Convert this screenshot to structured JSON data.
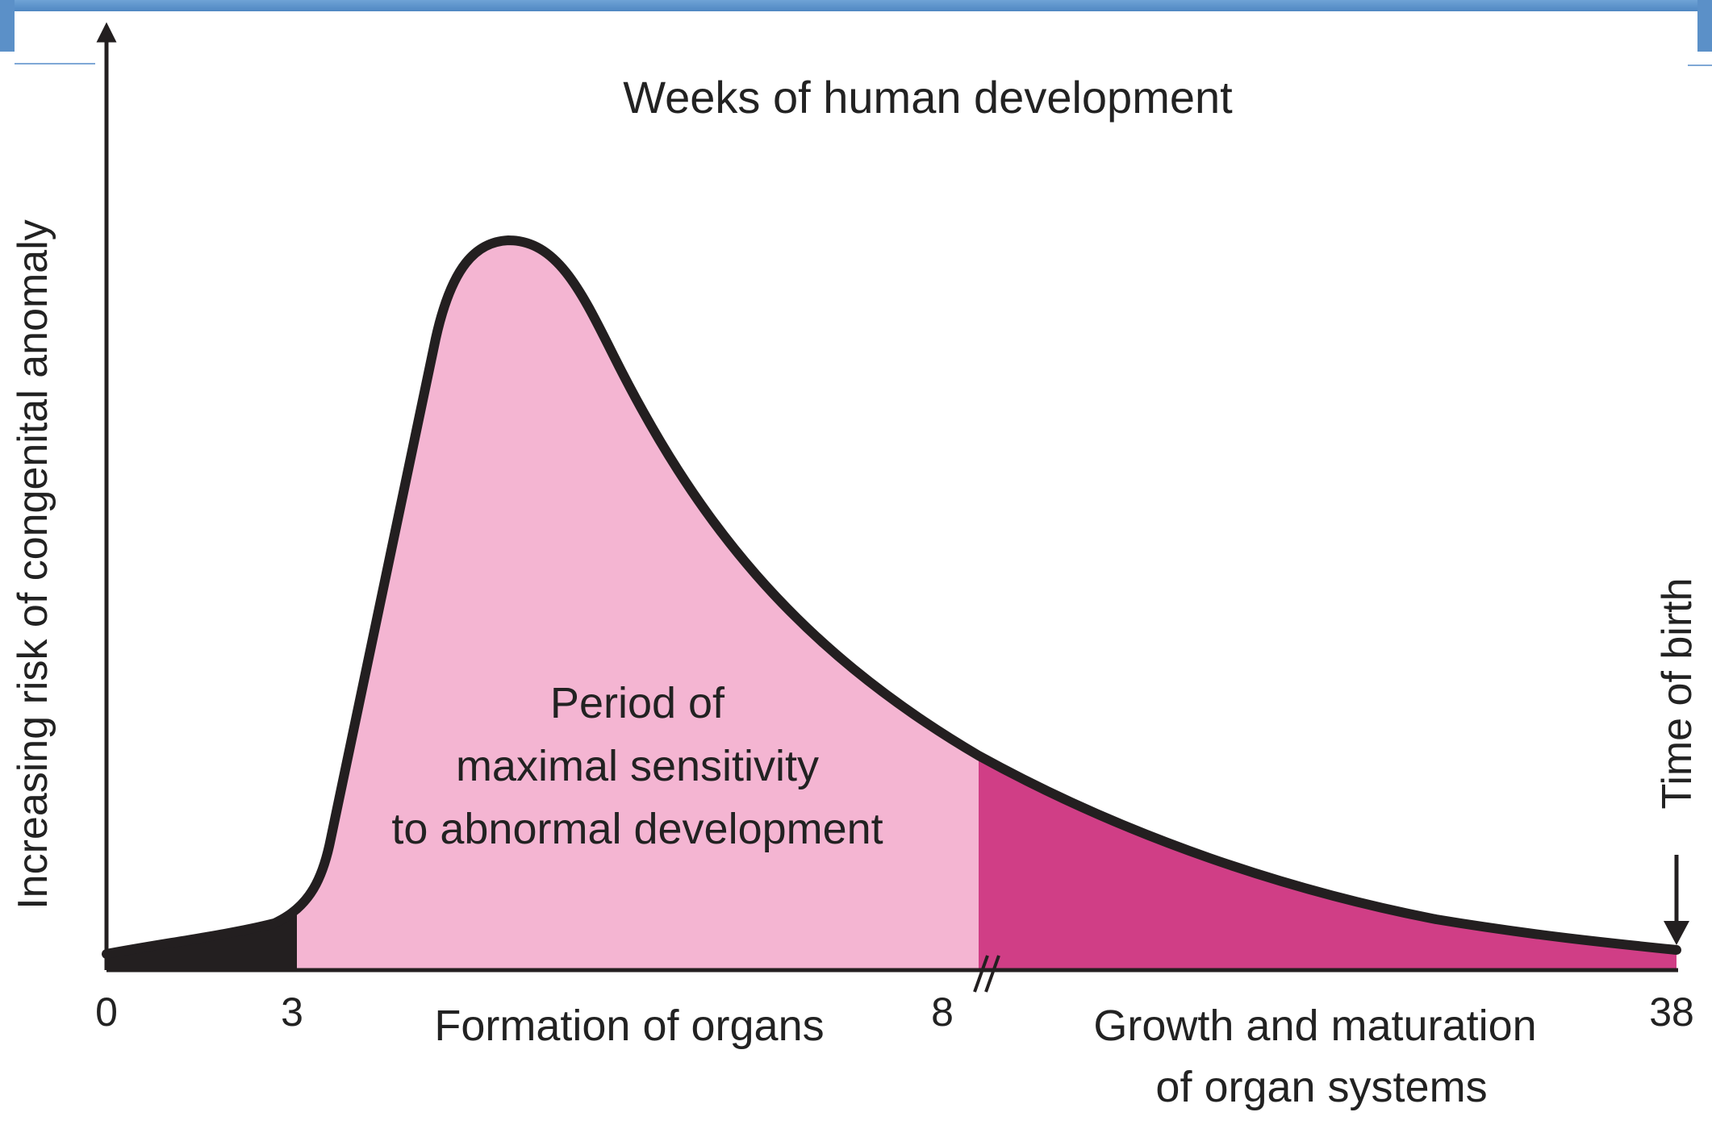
{
  "title": "Weeks of human development",
  "y_axis_label": "Increasing risk of congenital anomaly",
  "tick_labels": [
    "0",
    "3",
    "8",
    "38"
  ],
  "period_label_lines": [
    "Period of",
    "maximal sensitivity",
    "to abnormal development"
  ],
  "formation_label": "Formation of organs",
  "growth_label_lines": [
    "Growth and maturation",
    "of organ systems"
  ],
  "birth_label": "Time of birth",
  "colors": {
    "early_fill": "#231f20",
    "sensitive_fill": "#f4b5d2",
    "growth_fill": "#d03e86",
    "curve": "#231f20",
    "header_bar": "#5b90c8"
  }
}
